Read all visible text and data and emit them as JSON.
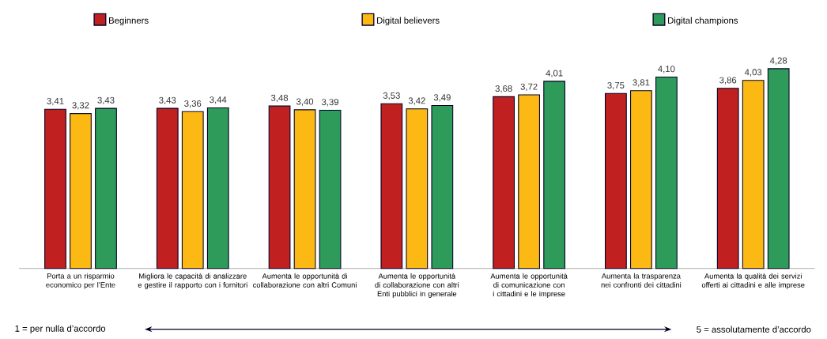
{
  "chart_data": {
    "type": "bar",
    "categories": [
      "Porta a un risparmio economico per l’Ente",
      "Migliora le capacità di analizzare e gestire il rapporto con i fornitori",
      "Aumenta le opportunità di collaborazione con altri Comuni",
      "Aumenta le opportunità di collaborazione con altri Enti pubblici in generale",
      "Aumenta le opportunità di comunicazione con i cittadini e le imprese",
      "Aumenta la trasparenza nei confronti dei cittadini",
      "Aumenta la qualità dei servizi offerti ai cittadini e alle imprese"
    ],
    "series": [
      {
        "name": "Beginners",
        "color": "#c0201f",
        "values": [
          3.41,
          3.43,
          3.48,
          3.53,
          3.68,
          3.75,
          3.86
        ],
        "value_labels": [
          "3,41",
          "3,43",
          "3,48",
          "3,53",
          "3,68",
          "3,75",
          "3,86"
        ]
      },
      {
        "name": "Digital believers",
        "color": "#fdb913",
        "values": [
          3.32,
          3.36,
          3.4,
          3.42,
          3.72,
          3.81,
          4.03
        ],
        "value_labels": [
          "3,32",
          "3,36",
          "3,40",
          "3,42",
          "3,72",
          "3,81",
          "4,03"
        ]
      },
      {
        "name": "Digital champions",
        "color": "#2e9b5a",
        "values": [
          3.43,
          3.44,
          3.39,
          3.49,
          4.01,
          4.1,
          4.28
        ],
        "value_labels": [
          "3,43",
          "3,44",
          "3,39",
          "3,49",
          "4,01",
          "4,10",
          "4,28"
        ]
      }
    ],
    "legend": "top",
    "annotations": [
      "1 = per nulla d’accordo",
      "5 = assolutamente d’accordo"
    ]
  }
}
